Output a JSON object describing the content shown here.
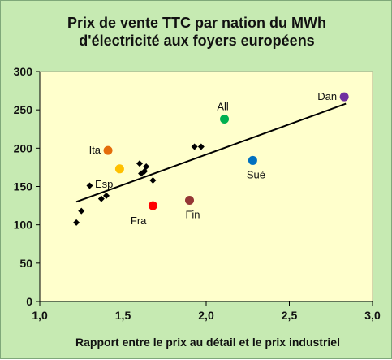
{
  "chart_data": {
    "type": "scatter",
    "title_line1": "Prix de vente TTC  par nation du MWh",
    "title_line2": "d'électricité aux foyers européens",
    "xlabel": "Rapport entre le prix au détail et le prix industriel",
    "ylabel": "",
    "xlim": [
      1.0,
      3.0
    ],
    "ylim": [
      0,
      300
    ],
    "x_ticks": [
      "1,0",
      "1,5",
      "2,0",
      "2,5",
      "3,0"
    ],
    "x_tick_values": [
      1.0,
      1.5,
      2.0,
      2.5,
      3.0
    ],
    "y_ticks": [
      "0",
      "50",
      "100",
      "150",
      "200",
      "250",
      "300"
    ],
    "y_tick_values": [
      0,
      50,
      100,
      150,
      200,
      250,
      300
    ],
    "grid": false,
    "unlabeled_points": [
      {
        "x": 1.22,
        "y": 103
      },
      {
        "x": 1.25,
        "y": 118
      },
      {
        "x": 1.3,
        "y": 151
      },
      {
        "x": 1.37,
        "y": 134
      },
      {
        "x": 1.4,
        "y": 138
      },
      {
        "x": 1.6,
        "y": 180
      },
      {
        "x": 1.61,
        "y": 167
      },
      {
        "x": 1.63,
        "y": 170
      },
      {
        "x": 1.64,
        "y": 176
      },
      {
        "x": 1.68,
        "y": 158
      },
      {
        "x": 1.93,
        "y": 202
      },
      {
        "x": 1.97,
        "y": 202
      }
    ],
    "labeled_points": [
      {
        "label": "Dan",
        "x": 2.83,
        "y": 267,
        "color": "#7030a0",
        "label_side": "left"
      },
      {
        "label": "All",
        "x": 2.11,
        "y": 238,
        "color": "#00b050",
        "label_side": "above"
      },
      {
        "label": "Ita",
        "x": 1.41,
        "y": 197,
        "color": "#e46c0a",
        "label_side": "left"
      },
      {
        "label": "Esp",
        "x": 1.48,
        "y": 173,
        "color": "#ffc000",
        "label_side": "below-left"
      },
      {
        "label": "Suè",
        "x": 2.28,
        "y": 184,
        "color": "#0070c0",
        "label_side": "below"
      },
      {
        "label": "Fin",
        "x": 1.9,
        "y": 132,
        "color": "#953735",
        "label_side": "below"
      },
      {
        "label": "Fra",
        "x": 1.68,
        "y": 125,
        "color": "#ff0000",
        "label_side": "below-left"
      }
    ],
    "trendline": {
      "x": [
        1.22,
        2.84
      ],
      "y": [
        130,
        258
      ]
    }
  },
  "colors": {
    "background": "#c6eab2",
    "plot_area": "#ffffcc",
    "axis": "#000000",
    "trendline": "#000000",
    "unlabeled_marker": "#000000"
  }
}
